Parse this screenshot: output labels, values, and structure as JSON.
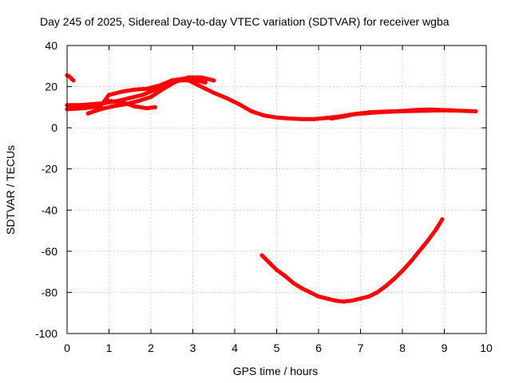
{
  "chart_data": {
    "type": "scatter",
    "title": "Day 245 of 2025, Sidereal Day-to-day VTEC variation (SDTVAR) for receiver wgba",
    "xlabel": "GPS time / hours",
    "ylabel": "SDTVAR / TECUs",
    "xlim": [
      0,
      10
    ],
    "ylim": [
      -100,
      40
    ],
    "xticks": [
      "0",
      "1",
      "2",
      "3",
      "4",
      "5",
      "6",
      "7",
      "8",
      "9",
      "10"
    ],
    "yticks": [
      "40",
      "20",
      "0",
      "-20",
      "-40",
      "-60",
      "-80",
      "-100"
    ],
    "grid": true,
    "legend": "none",
    "series_color": "#ff0000",
    "series": [
      {
        "name": "short-arc-start",
        "x": [
          0.0,
          0.05,
          0.1,
          0.15
        ],
        "y": [
          25.5,
          25,
          24,
          23
        ]
      },
      {
        "name": "main-band-a",
        "x": [
          0.0,
          0.3,
          0.6,
          0.9,
          1.2,
          1.5,
          1.8,
          2.1,
          2.4,
          2.7,
          2.9,
          3.1,
          3.3,
          3.5,
          3.8,
          4.1,
          4.4,
          4.7,
          5.0,
          5.3,
          5.6,
          5.9,
          6.2,
          6.5,
          6.8,
          7.1,
          7.4,
          7.7,
          8.0,
          8.3,
          8.6,
          8.9,
          9.2,
          9.5,
          9.75
        ],
        "y": [
          11,
          11,
          11.5,
          12,
          13,
          14.5,
          16,
          18.5,
          21.5,
          23,
          23,
          21,
          19,
          17,
          14.5,
          11.5,
          8,
          6,
          5,
          4.5,
          4.2,
          4.2,
          4.8,
          5.5,
          6.5,
          7,
          7.5,
          7.8,
          8,
          8.2,
          8.3,
          8.5,
          8.4,
          8.2,
          8
        ]
      },
      {
        "name": "main-band-b",
        "x": [
          0.0,
          0.4,
          0.8,
          1.0,
          1.3,
          1.6,
          1.9,
          2.2,
          2.5,
          2.8,
          3.0,
          3.3
        ],
        "y": [
          9,
          9.5,
          10.5,
          16,
          17.5,
          18.5,
          19,
          20.5,
          23,
          24,
          23.5,
          22
        ]
      },
      {
        "name": "main-band-c",
        "x": [
          0.5,
          0.8,
          1.1,
          1.4,
          1.7,
          2.0,
          2.3,
          2.6,
          2.9,
          3.2,
          3.5
        ],
        "y": [
          7,
          9,
          10.5,
          11.5,
          13,
          15,
          19,
          22.5,
          24.5,
          24.5,
          23
        ]
      },
      {
        "name": "main-band-d",
        "x": [
          1.0,
          1.3,
          1.6,
          1.9,
          2.1
        ],
        "y": [
          13,
          12.5,
          10.5,
          9.5,
          10
        ]
      },
      {
        "name": "late-band",
        "x": [
          6.3,
          6.6,
          6.9,
          7.2,
          7.5,
          7.8,
          8.1,
          8.4,
          8.7,
          9.0,
          9.2
        ],
        "y": [
          4.5,
          5.5,
          6.8,
          7.5,
          7.8,
          8,
          8.3,
          8.8,
          8.9,
          8.6,
          8.5
        ]
      },
      {
        "name": "lower-arc",
        "x": [
          4.65,
          4.8,
          5.0,
          5.2,
          5.4,
          5.6,
          5.8,
          6.0,
          6.2,
          6.4,
          6.6,
          6.8,
          7.0,
          7.2,
          7.4,
          7.6,
          7.8,
          8.0,
          8.2,
          8.4,
          8.6,
          8.8,
          8.95
        ],
        "y": [
          -62,
          -65,
          -69,
          -72,
          -75.5,
          -78,
          -80,
          -82,
          -83,
          -84,
          -84.5,
          -84,
          -83,
          -82,
          -80,
          -77,
          -73.5,
          -69.5,
          -65,
          -60,
          -55,
          -49.5,
          -44.5
        ]
      }
    ]
  }
}
